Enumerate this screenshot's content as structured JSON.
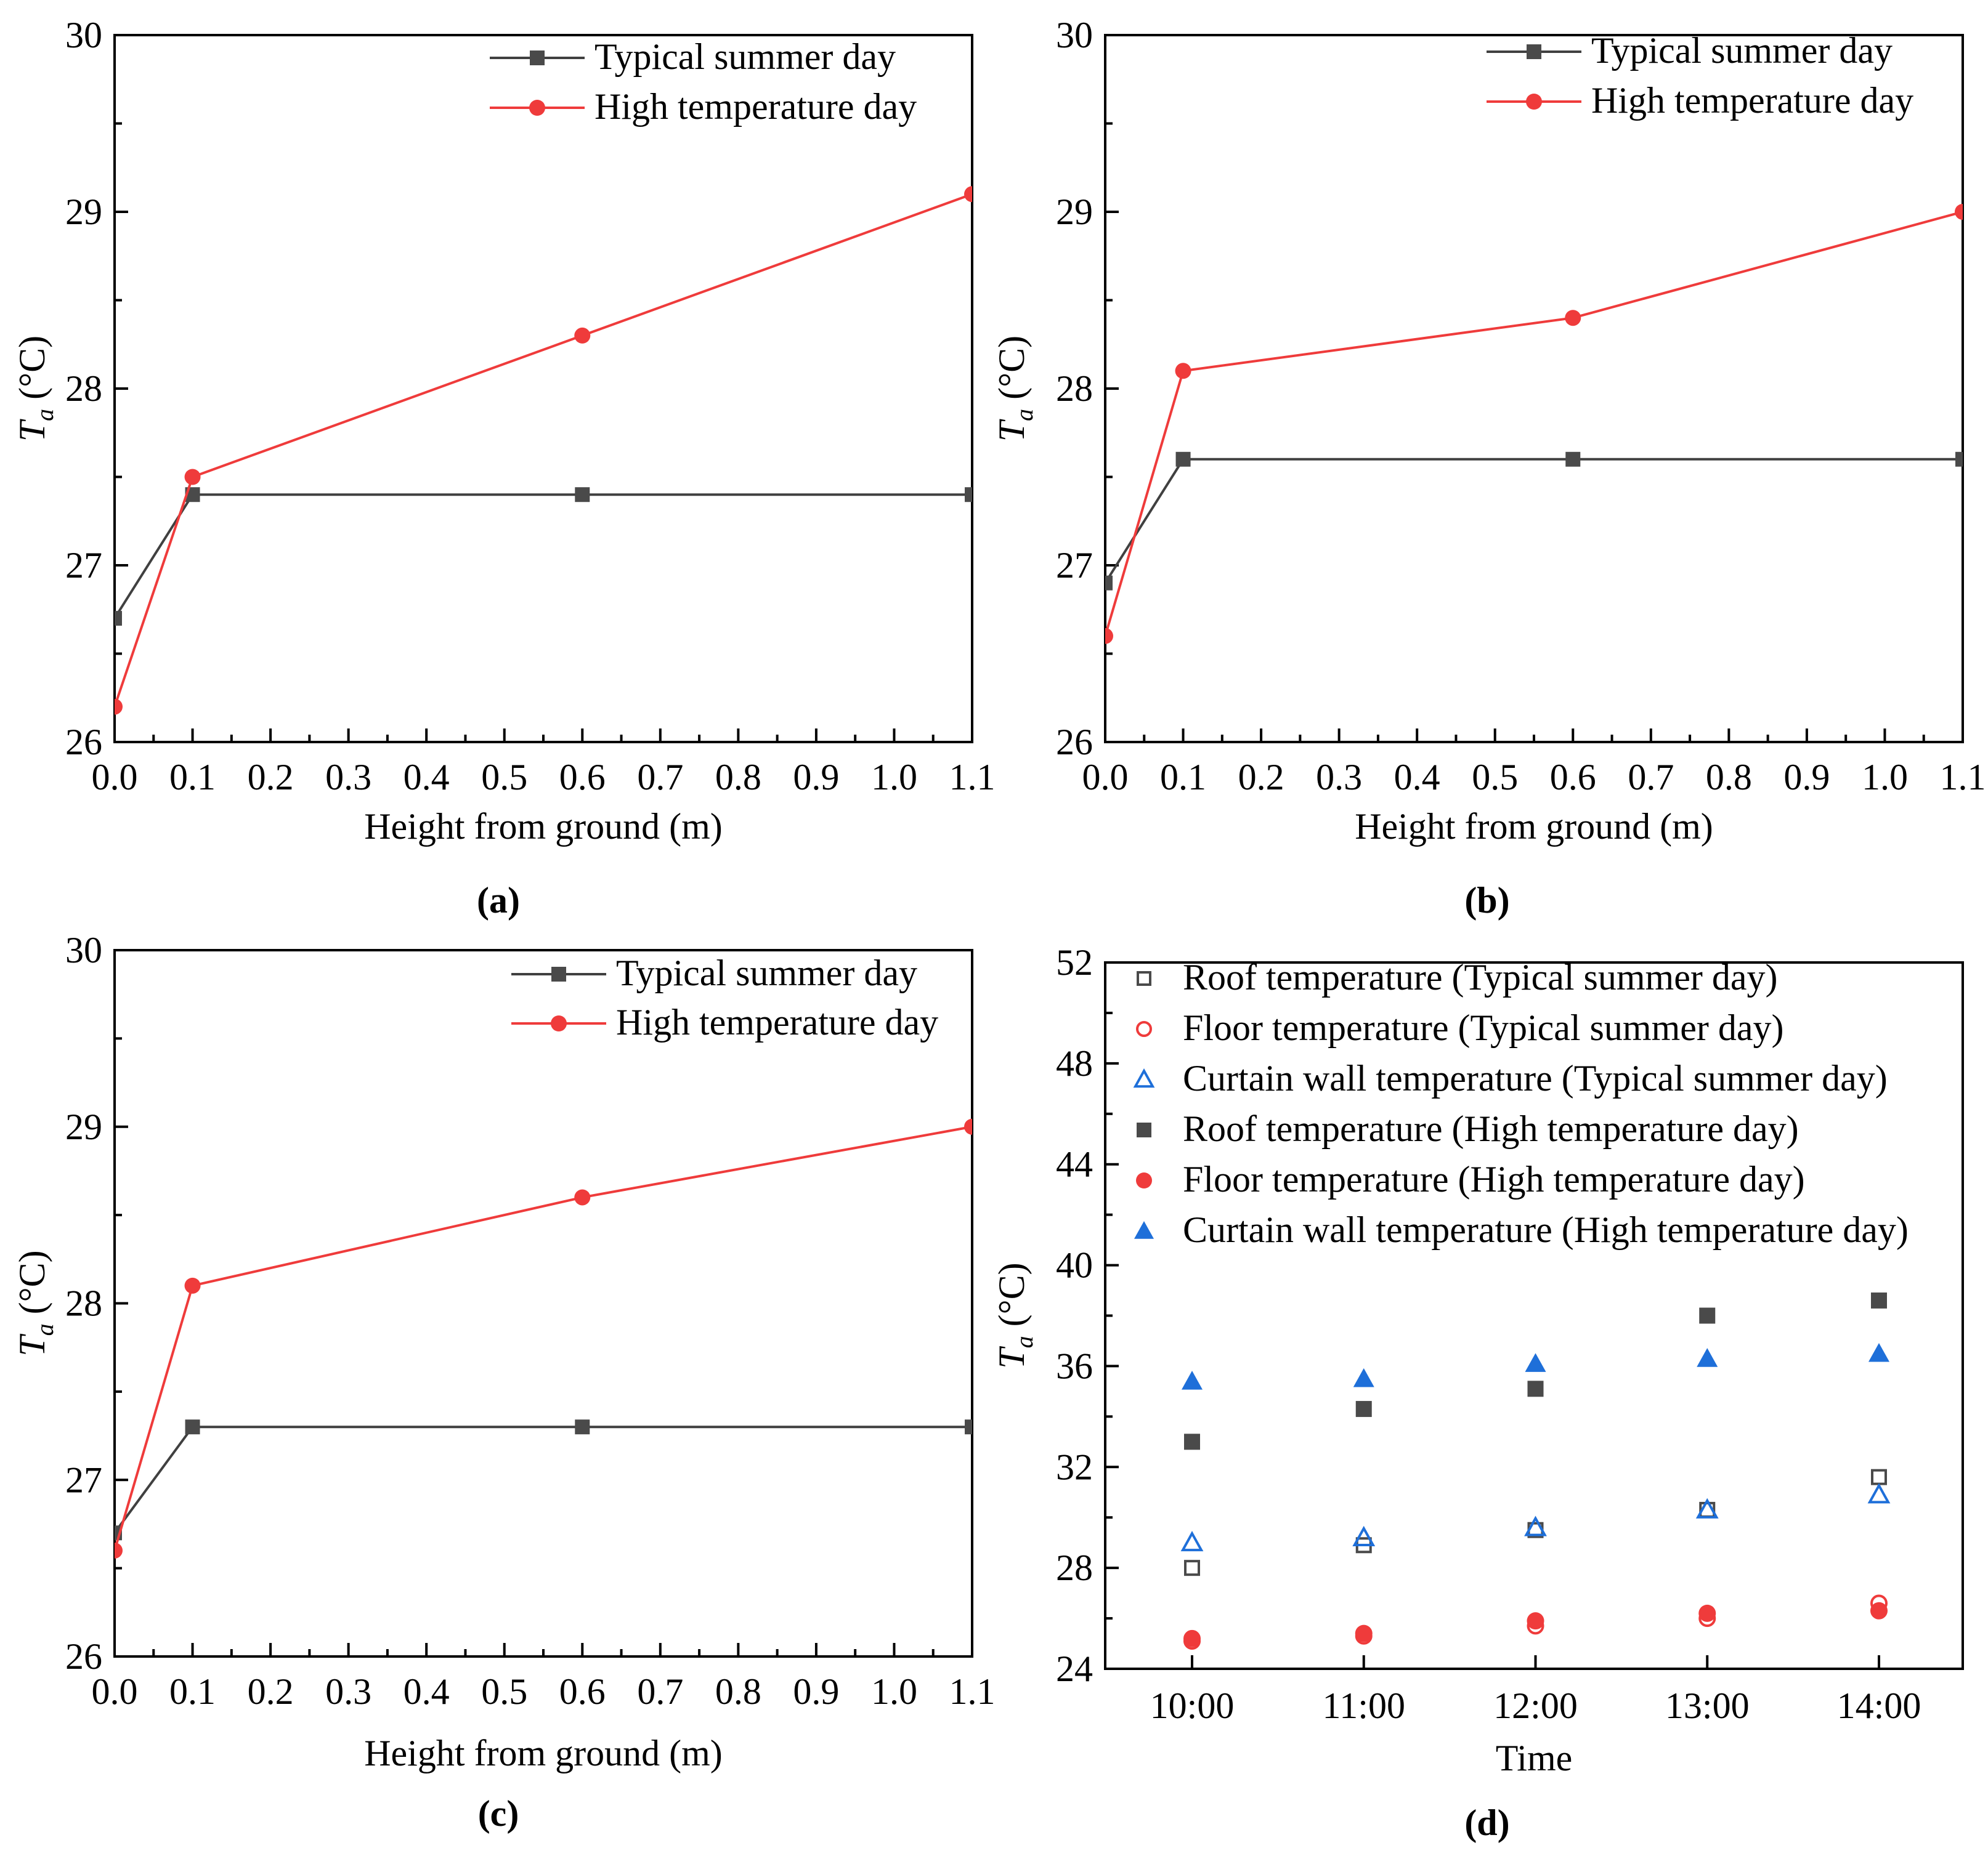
{
  "colors": {
    "typical": "#404040",
    "typical_marker": "#4a4a4a",
    "high": "#ef3b3b",
    "curtain": "#1e6fd9",
    "roof": "#4a4a4a",
    "floor": "#ef3b3b"
  },
  "chart_data": [
    {
      "id": "a",
      "type": "line",
      "panel_label": "(a)",
      "xlabel": "Height from ground (m)",
      "ylabel_main": "T",
      "ylabel_sub": "a",
      "ylabel_unit": " (°C)",
      "xlim": [
        0,
        1.1
      ],
      "ylim": [
        26,
        30
      ],
      "xticks": [
        "0.0",
        "0.1",
        "0.2",
        "0.3",
        "0.4",
        "0.5",
        "0.6",
        "0.7",
        "0.8",
        "0.9",
        "1.0",
        "1.1"
      ],
      "yticks": [
        "26",
        "27",
        "28",
        "29",
        "30"
      ],
      "legend_position": "top-right",
      "series": [
        {
          "name": "Typical summer day",
          "marker": "square",
          "x": [
            0.0,
            0.1,
            0.6,
            1.1
          ],
          "values": [
            26.7,
            27.4,
            27.4,
            27.4
          ]
        },
        {
          "name": "High temperature day",
          "marker": "circle",
          "x": [
            0.0,
            0.1,
            0.6,
            1.1
          ],
          "values": [
            26.2,
            27.5,
            28.3,
            29.1
          ]
        }
      ]
    },
    {
      "id": "b",
      "type": "line",
      "panel_label": "(b)",
      "xlabel": "Height from ground (m)",
      "ylabel_main": "T",
      "ylabel_sub": "a",
      "ylabel_unit": " (°C)",
      "xlim": [
        0,
        1.1
      ],
      "ylim": [
        26,
        30
      ],
      "xticks": [
        "0.0",
        "0.1",
        "0.2",
        "0.3",
        "0.4",
        "0.5",
        "0.6",
        "0.7",
        "0.8",
        "0.9",
        "1.0",
        "1.1"
      ],
      "yticks": [
        "26",
        "27",
        "28",
        "29",
        "30"
      ],
      "legend_position": "top-right",
      "series": [
        {
          "name": "Typical summer day",
          "marker": "square",
          "x": [
            0.0,
            0.1,
            0.6,
            1.1
          ],
          "values": [
            26.9,
            27.6,
            27.6,
            27.6
          ]
        },
        {
          "name": "High temperature day",
          "marker": "circle",
          "x": [
            0.0,
            0.1,
            0.6,
            1.1
          ],
          "values": [
            26.6,
            28.1,
            28.4,
            29.0
          ]
        }
      ]
    },
    {
      "id": "c",
      "type": "line",
      "panel_label": "(c)",
      "xlabel": "Height from ground (m)",
      "ylabel_main": "T",
      "ylabel_sub": "a",
      "ylabel_unit": " (°C)",
      "xlim": [
        0,
        1.1
      ],
      "ylim": [
        26,
        30
      ],
      "xticks": [
        "0.0",
        "0.1",
        "0.2",
        "0.3",
        "0.4",
        "0.5",
        "0.6",
        "0.7",
        "0.8",
        "0.9",
        "1.0",
        "1.1"
      ],
      "yticks": [
        "26",
        "27",
        "28",
        "29",
        "30"
      ],
      "legend_position": "top-right",
      "series": [
        {
          "name": "Typical summer day",
          "marker": "square",
          "x": [
            0.0,
            0.1,
            0.6,
            1.1
          ],
          "values": [
            26.7,
            27.3,
            27.3,
            27.3
          ]
        },
        {
          "name": "High temperature day",
          "marker": "circle",
          "x": [
            0.0,
            0.1,
            0.6,
            1.1
          ],
          "values": [
            26.6,
            28.1,
            28.6,
            29.0
          ]
        }
      ]
    },
    {
      "id": "d",
      "type": "scatter",
      "panel_label": "(d)",
      "xlabel": "Time",
      "ylabel_main": "T",
      "ylabel_sub": "a",
      "ylabel_unit": " (°C)",
      "categories": [
        "10:00",
        "11:00",
        "12:00",
        "13:00",
        "14:00"
      ],
      "ylim": [
        24,
        52
      ],
      "yticks": [
        "24",
        "28",
        "32",
        "36",
        "40",
        "44",
        "48",
        "52"
      ],
      "legend_position": "top-right",
      "series": [
        {
          "name": "Roof temperature (Typical summer day)",
          "marker": "square-open",
          "values": [
            28.0,
            28.9,
            29.5,
            30.3,
            31.6
          ]
        },
        {
          "name": "Floor temperature  (Typical summer day)",
          "marker": "circle-open",
          "values": [
            25.1,
            25.3,
            25.7,
            26.0,
            26.6
          ]
        },
        {
          "name": "Curtain wall temperature (Typical summer day)",
          "marker": "triangle-open",
          "values": [
            29.0,
            29.2,
            29.6,
            30.3,
            30.9
          ]
        },
        {
          "name": "Roof temperature (High temperature day)",
          "marker": "square",
          "values": [
            33.0,
            34.3,
            35.1,
            38.0,
            38.6
          ]
        },
        {
          "name": "Floor temperature (High temperature day)",
          "marker": "circle",
          "values": [
            25.2,
            25.4,
            25.9,
            26.2,
            26.3
          ]
        },
        {
          "name": "Curtain wall temperature (High temperature day)",
          "marker": "triangle",
          "values": [
            35.4,
            35.5,
            36.1,
            36.3,
            36.5
          ]
        }
      ]
    }
  ]
}
